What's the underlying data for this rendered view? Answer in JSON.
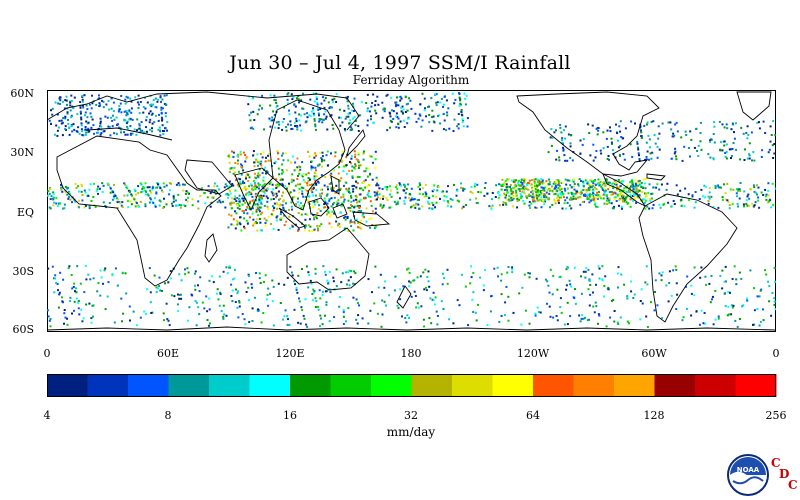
{
  "title": "Jun 30 – Jul 4, 1997 SSM/I Rainfall",
  "subtitle": "Ferriday Algorithm",
  "lat_labels": [
    "60N",
    "30N",
    "EQ",
    "30S",
    "60S"
  ],
  "lon_labels": [
    "0",
    "60E",
    "120E",
    "180",
    "120W",
    "60W",
    "0"
  ],
  "colorbar": {
    "colors": [
      "#00207f",
      "#0033bb",
      "#0055ff",
      "#009999",
      "#00cccc",
      "#00ffff",
      "#009900",
      "#00cc00",
      "#00ff00",
      "#b3b300",
      "#dddd00",
      "#ffff00",
      "#ff5500",
      "#ff8000",
      "#ffa500",
      "#990000",
      "#cc0000",
      "#ff0000"
    ],
    "tick_labels": [
      "4",
      "8",
      "16",
      "32",
      "64",
      "128",
      "256"
    ],
    "units": "mm/day"
  },
  "logos": {
    "noaa": "NOAA",
    "cdc_letters": [
      "C",
      "D",
      "C"
    ]
  }
}
